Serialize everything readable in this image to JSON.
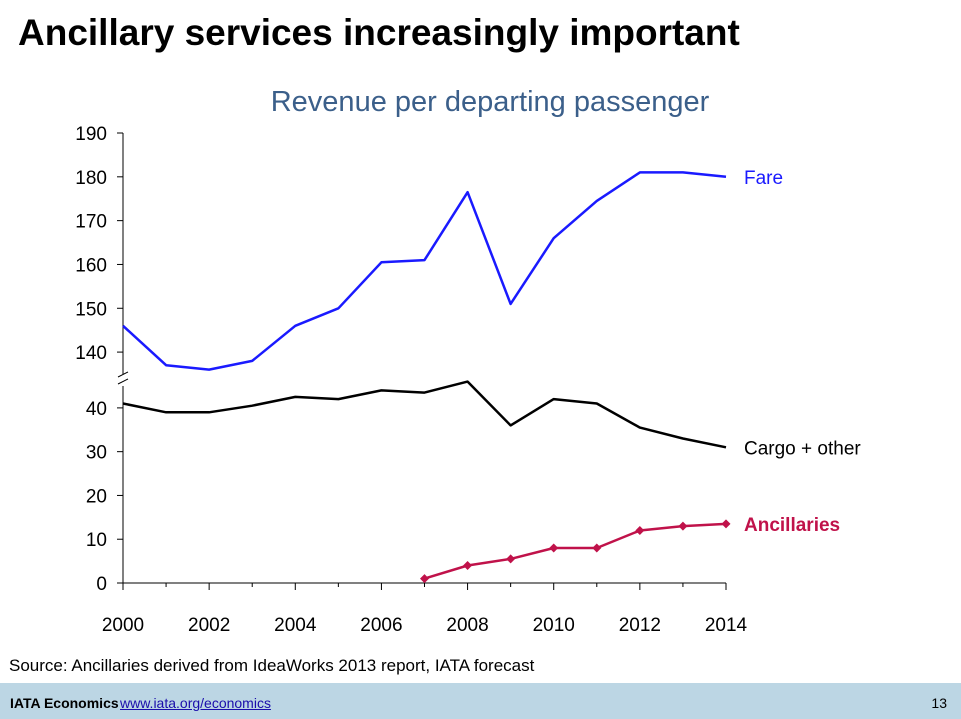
{
  "slide": {
    "title": "Ancillary services increasingly important",
    "source": "Source: Ancillaries derived from IdeaWorks 2013 report, IATA forecast",
    "footer_brand": "IATA Economics",
    "footer_link": "www.iata.org/economics",
    "page_number": "13"
  },
  "chart_data": {
    "type": "line",
    "title": "Revenue per departing passenger",
    "xlabel": "",
    "ylabel": "",
    "grid": false,
    "legend": "inline-right",
    "broken_axis": true,
    "xlim": [
      2000,
      2014
    ],
    "x_ticks": [
      2000,
      2002,
      2004,
      2006,
      2008,
      2010,
      2012,
      2014
    ],
    "y_segments": {
      "upper": {
        "ylim": [
          135,
          190
        ],
        "ticks": [
          140,
          150,
          160,
          170,
          180,
          190
        ]
      },
      "lower": {
        "ylim": [
          0,
          45
        ],
        "ticks": [
          0,
          10,
          20,
          30,
          40
        ]
      }
    },
    "series": [
      {
        "name": "Fare",
        "color": "#1a1aff",
        "segment": "upper",
        "x": [
          2000,
          2001,
          2002,
          2003,
          2004,
          2005,
          2006,
          2007,
          2008,
          2009,
          2010,
          2011,
          2012,
          2013,
          2014
        ],
        "y": [
          146,
          137,
          136,
          138,
          146,
          150,
          160.5,
          161,
          176.5,
          151,
          166,
          174.5,
          181,
          181,
          180
        ]
      },
      {
        "name": "Cargo + other",
        "color": "#000000",
        "segment": "lower",
        "x": [
          2000,
          2001,
          2002,
          2003,
          2004,
          2005,
          2006,
          2007,
          2008,
          2009,
          2010,
          2011,
          2012,
          2013,
          2014
        ],
        "y": [
          41,
          39,
          39,
          40.5,
          42.5,
          42,
          44,
          43.5,
          46,
          36,
          42,
          41,
          35.5,
          33,
          31
        ]
      },
      {
        "name": "Ancillaries",
        "color": "#c0124a",
        "segment": "lower",
        "markers": "diamond",
        "x": [
          2007,
          2008,
          2009,
          2010,
          2011,
          2012,
          2013,
          2014
        ],
        "y": [
          1,
          4,
          5.5,
          8,
          8,
          12,
          13,
          13.5
        ]
      }
    ]
  }
}
